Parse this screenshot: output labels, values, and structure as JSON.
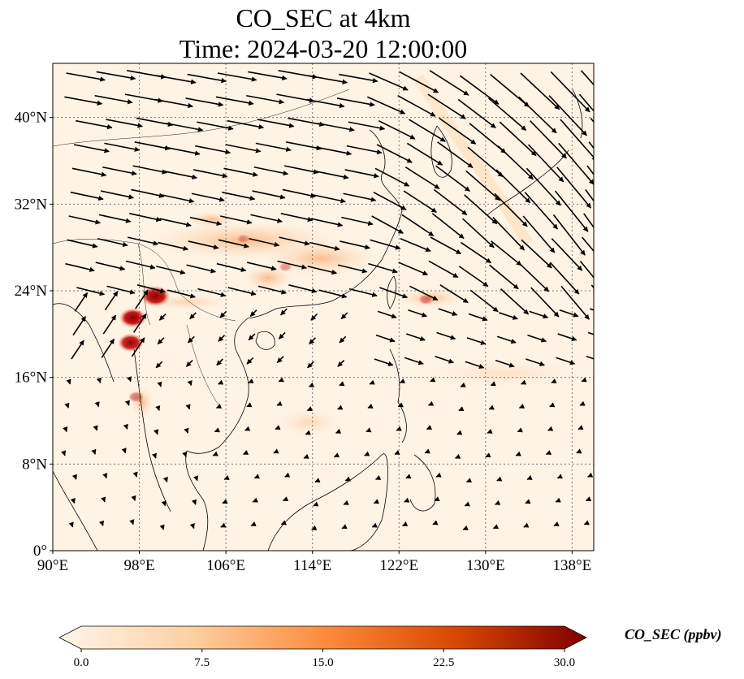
{
  "title_line1": "CO_SEC at 4km",
  "title_line2": "Time: 2024-03-20 12:00:00",
  "map": {
    "lon_ticks": [
      "90°E",
      "98°E",
      "106°E",
      "114°E",
      "122°E",
      "130°E",
      "138°E"
    ],
    "lat_ticks": [
      "0°",
      "8°N",
      "16°N",
      "24°N",
      "32°N",
      "40°N"
    ],
    "lon_range": [
      90,
      140
    ],
    "lat_range": [
      0,
      45
    ],
    "gridlines": true
  },
  "colorbar": {
    "title": "CO_SEC (ppbv)",
    "ticks": [
      "0.0",
      "7.5",
      "15.0",
      "22.5",
      "30.0"
    ],
    "range": [
      0,
      30
    ],
    "colormap": [
      "#fff5eb",
      "#fdd0a2",
      "#fd8d3c",
      "#d94801",
      "#7f0000"
    ]
  },
  "hotspots": [
    {
      "lon": 99.5,
      "lat": 23.5,
      "value": 28
    },
    {
      "lon": 97.4,
      "lat": 21.5,
      "value": 26
    },
    {
      "lon": 97.2,
      "lat": 19.2,
      "value": 24
    },
    {
      "lon": 97.7,
      "lat": 14.2,
      "value": 12
    },
    {
      "lon": 107.6,
      "lat": 28.8,
      "value": 8
    },
    {
      "lon": 111.5,
      "lat": 26.2,
      "value": 9
    },
    {
      "lon": 124.5,
      "lat": 23.2,
      "value": 11
    }
  ]
}
